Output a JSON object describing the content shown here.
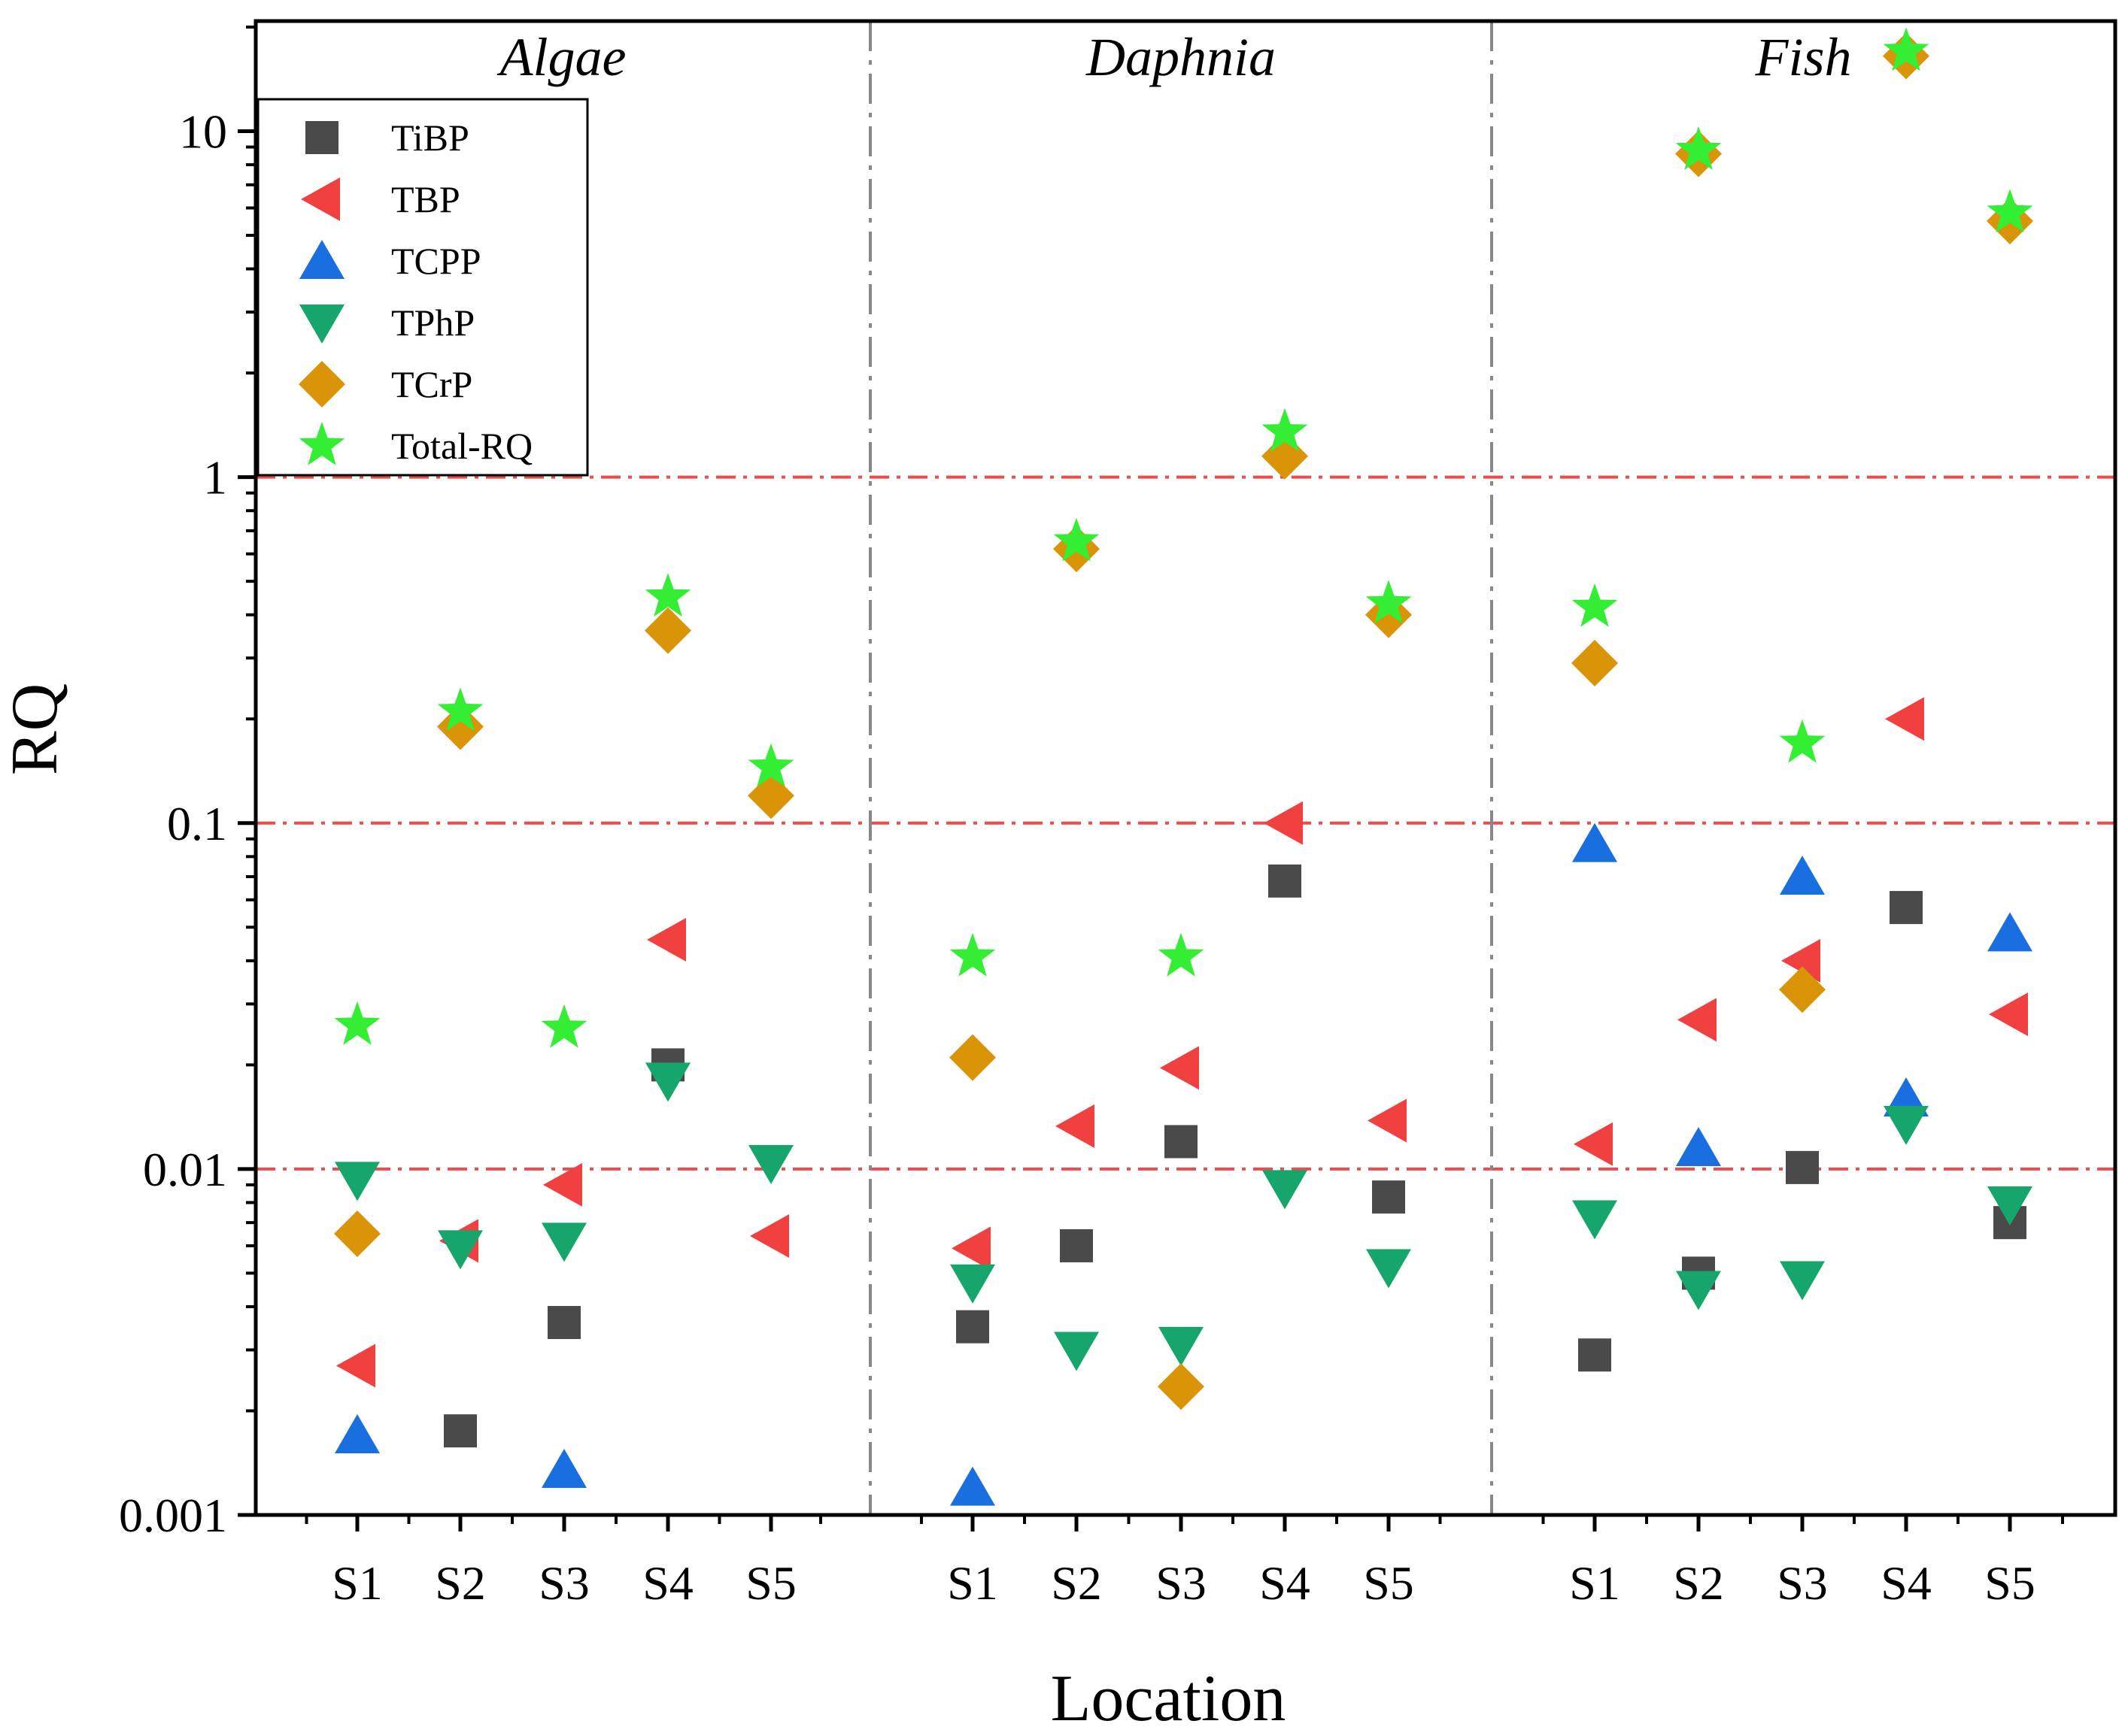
{
  "chart_data": {
    "type": "scatter",
    "yscale": "log",
    "ylim": [
      0.001,
      20
    ],
    "ylabel": "RQ",
    "xlabel": "Location",
    "yticks": [
      {
        "value": 0.001,
        "label": "0.001"
      },
      {
        "value": 0.01,
        "label": "0.01"
      },
      {
        "value": 0.1,
        "label": "0.1"
      },
      {
        "value": 1,
        "label": "1"
      },
      {
        "value": 10,
        "label": "10"
      }
    ],
    "reference_lines": [
      0.01,
      0.1,
      1
    ],
    "categories": [
      "S1",
      "S2",
      "S3",
      "S4",
      "S5"
    ],
    "panels": [
      {
        "title": "Algae",
        "series": [
          {
            "name": "TiBP",
            "values": [
              null,
              0.00175,
              0.0036,
              0.02,
              null
            ]
          },
          {
            "name": "TBP",
            "values": [
              0.0027,
              0.0062,
              0.009,
              0.046,
              0.0064
            ]
          },
          {
            "name": "TCPP",
            "values": [
              0.0017,
              null,
              0.00135,
              null,
              null
            ]
          },
          {
            "name": "TPhP",
            "values": [
              0.0093,
              0.0059,
              0.0062,
              0.018,
              0.0104
            ]
          },
          {
            "name": "TCrP",
            "values": [
              0.0065,
              0.19,
              null,
              0.36,
              0.12
            ]
          },
          {
            "name": "Total-RQ",
            "values": [
              0.026,
              0.21,
              0.0255,
              0.45,
              0.145
            ]
          }
        ]
      },
      {
        "title": "Daphnia",
        "series": [
          {
            "name": "TiBP",
            "values": [
              0.0035,
              0.006,
              0.012,
              0.068,
              0.0083
            ]
          },
          {
            "name": "TBP",
            "values": [
              0.0059,
              0.0133,
              0.0196,
              0.1,
              0.0138
            ]
          },
          {
            "name": "TCPP",
            "values": [
              0.0012,
              null,
              null,
              null,
              null
            ]
          },
          {
            "name": "TPhP",
            "values": [
              0.0047,
              0.003,
              0.0031,
              0.0088,
              0.0052
            ]
          },
          {
            "name": "TCrP",
            "values": [
              0.021,
              0.62,
              0.00235,
              1.15,
              0.4
            ]
          },
          {
            "name": "Total-RQ",
            "values": [
              0.041,
              0.65,
              0.041,
              1.35,
              0.43
            ]
          }
        ]
      },
      {
        "title": "Fish",
        "series": [
          {
            "name": "TiBP",
            "values": [
              0.0029,
              0.005,
              0.0101,
              0.057,
              0.007
            ]
          },
          {
            "name": "TBP",
            "values": [
              0.0118,
              0.027,
              0.04,
              0.2,
              0.028
            ]
          },
          {
            "name": "TCPP",
            "values": [
              0.087,
              0.0115,
              0.07,
              0.016,
              0.048
            ]
          },
          {
            "name": "TPhP",
            "values": [
              0.0072,
              0.0045,
              0.0048,
              0.0135,
              0.0079
            ]
          },
          {
            "name": "TCrP",
            "values": [
              0.29,
              8.6,
              0.033,
              16.5,
              5.5
            ]
          },
          {
            "name": "Total-RQ",
            "values": [
              0.42,
              8.8,
              0.17,
              17.0,
              5.8
            ]
          }
        ]
      }
    ],
    "legend": {
      "position": "top-left",
      "items": [
        {
          "name": "TiBP",
          "marker": "square",
          "color": "#4a4a4a"
        },
        {
          "name": "TBP",
          "marker": "triangle-left",
          "color": "#f04040"
        },
        {
          "name": "TCPP",
          "marker": "triangle-up",
          "color": "#1a6fe0"
        },
        {
          "name": "TPhP",
          "marker": "triangle-down",
          "color": "#16a56a"
        },
        {
          "name": "TCrP",
          "marker": "diamond",
          "color": "#d99408"
        },
        {
          "name": "Total-RQ",
          "marker": "star",
          "color": "#33ee33"
        }
      ]
    },
    "colors": {
      "reference_line": "#f04a4a",
      "panel_divider": "#888888",
      "axis": "#000000"
    }
  }
}
